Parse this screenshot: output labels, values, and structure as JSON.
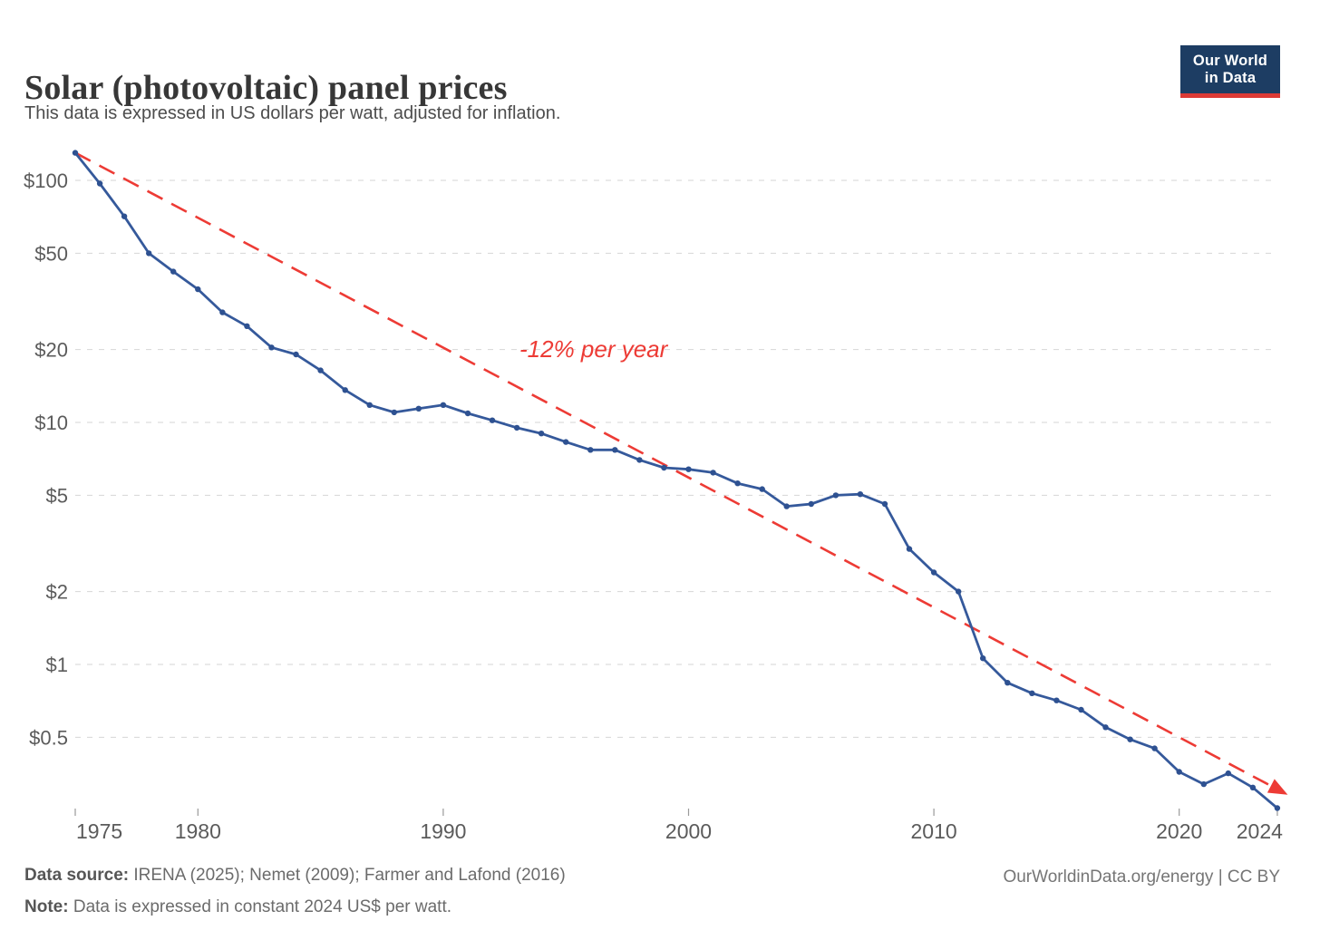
{
  "header": {
    "title": "Solar (photovoltaic) panel prices",
    "subtitle": "This data is expressed in US dollars per watt, adjusted for inflation.",
    "logo_line1": "Our World",
    "logo_line2": "in Data"
  },
  "chart_data": {
    "type": "line",
    "yscale": "log",
    "grid": true,
    "xlim": [
      1975,
      2025
    ],
    "ylim": [
      0.22,
      140
    ],
    "series_name": "Solar photovoltaic panel price (constant 2024 US$ per watt)",
    "line_color": "#35599b",
    "marker_color": "#2e5191",
    "grid_color": "#d6d6d6",
    "axis_text_color": "#5b5b5b",
    "years": [
      1975,
      1976,
      1977,
      1978,
      1979,
      1980,
      1981,
      1982,
      1983,
      1984,
      1985,
      1986,
      1987,
      1988,
      1989,
      1990,
      1991,
      1992,
      1993,
      1994,
      1995,
      1996,
      1997,
      1998,
      1999,
      2000,
      2001,
      2002,
      2003,
      2004,
      2005,
      2006,
      2007,
      2008,
      2009,
      2010,
      2011,
      2012,
      2013,
      2014,
      2015,
      2016,
      2017,
      2018,
      2019,
      2020,
      2021,
      2022,
      2023,
      2024
    ],
    "values": [
      130,
      97,
      71,
      50,
      42,
      35.5,
      28.5,
      25,
      20.4,
      19.1,
      16.4,
      13.6,
      11.8,
      11.0,
      11.4,
      11.8,
      10.9,
      10.2,
      9.5,
      9.0,
      8.3,
      7.7,
      7.7,
      7.0,
      6.5,
      6.4,
      6.2,
      5.6,
      5.3,
      4.5,
      4.6,
      5.0,
      5.05,
      4.6,
      3.0,
      2.4,
      2.0,
      1.06,
      0.84,
      0.76,
      0.71,
      0.65,
      0.55,
      0.49,
      0.45,
      0.36,
      0.32,
      0.355,
      0.31,
      0.255
    ],
    "trend": {
      "label": "-12% per year",
      "color": "#ed3b35",
      "start_year": 1975,
      "start_value": 130,
      "end_year": 2024,
      "end_value": 0.305
    },
    "yticks": [
      {
        "v": 100,
        "label": "$100"
      },
      {
        "v": 50,
        "label": "$50"
      },
      {
        "v": 20,
        "label": "$20"
      },
      {
        "v": 10,
        "label": "$10"
      },
      {
        "v": 5,
        "label": "$5"
      },
      {
        "v": 2,
        "label": "$2"
      },
      {
        "v": 1,
        "label": "$1"
      },
      {
        "v": 0.5,
        "label": "$0.5"
      }
    ],
    "xticks": [
      {
        "year": 1975,
        "label": "1975",
        "anchor": "start"
      },
      {
        "year": 1980,
        "label": "1980",
        "anchor": "middle"
      },
      {
        "year": 1990,
        "label": "1990",
        "anchor": "middle"
      },
      {
        "year": 2000,
        "label": "2000",
        "anchor": "middle"
      },
      {
        "year": 2010,
        "label": "2010",
        "anchor": "middle"
      },
      {
        "year": 2020,
        "label": "2020",
        "anchor": "middle"
      },
      {
        "year": 2024,
        "label": "2024",
        "anchor": "end"
      }
    ]
  },
  "footer": {
    "datasource_label": "Data source:",
    "datasource_text": " IRENA (2025); Nemet (2009); Farmer and Lafond (2016)",
    "note_label": "Note:",
    "note_text": " Data is expressed in constant 2024 US$ per watt.",
    "right_text": "OurWorldinData.org/energy | CC BY"
  }
}
